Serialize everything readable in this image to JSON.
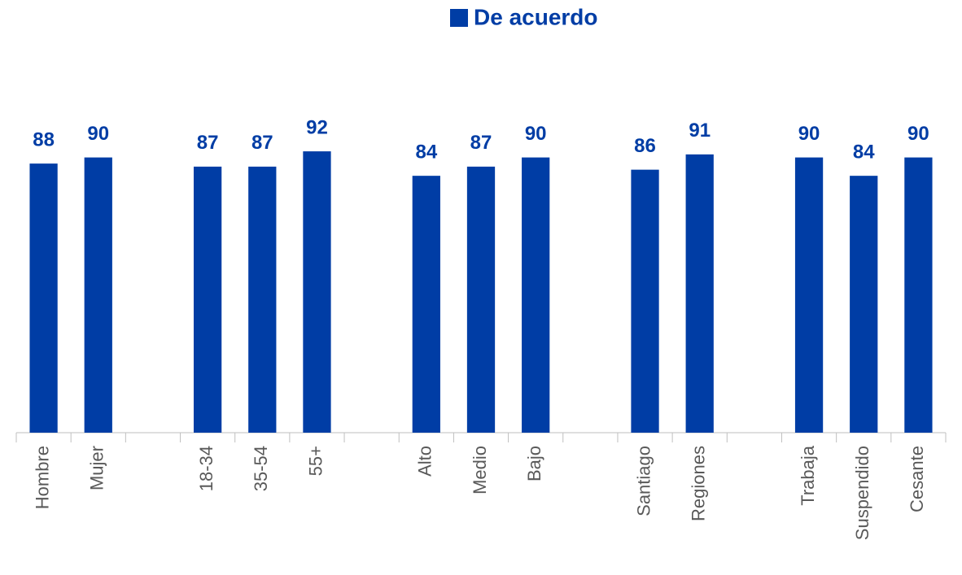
{
  "chart_data": {
    "type": "bar",
    "categories": [
      "Hombre",
      "Mujer",
      null,
      "18-34",
      "35-54",
      "55+",
      null,
      "Alto",
      "Medio",
      "Bajo",
      null,
      "Santiago",
      "Regiones",
      null,
      "Trabaja",
      "Suspendido",
      "Cesante"
    ],
    "series": [
      {
        "name": "De acuerdo",
        "color": "#003da5",
        "values": [
          88,
          90,
          null,
          87,
          87,
          92,
          null,
          84,
          87,
          90,
          null,
          86,
          91,
          null,
          90,
          84,
          90
        ]
      }
    ],
    "ylim": [
      0,
      100
    ],
    "legend": "top"
  }
}
